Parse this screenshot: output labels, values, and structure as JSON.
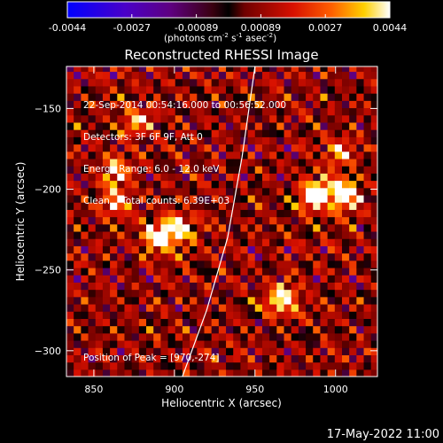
{
  "chart_data": {
    "type": "heatmap",
    "title": "Reconstructed RHESSI Image",
    "xlabel": "Heliocentric X (arcsec)",
    "ylabel": "Heliocentric Y (arcsec)",
    "xlim": [
      833,
      1026
    ],
    "ylim": [
      -316,
      -124
    ],
    "x_ticks": [
      850,
      900,
      950,
      1000
    ],
    "y_ticks": [
      -150,
      -200,
      -250,
      -300
    ],
    "colorbar": {
      "range": [
        -0.0044,
        0.0044
      ],
      "ticks": [
        "-0.0044",
        "-0.0027",
        "-0.00089",
        "0.00089",
        "0.0027",
        "0.0044"
      ],
      "unit_label": "(photons cm^-2 s^-1 asec^-2)",
      "unit_parts": {
        "base": "(photons cm",
        "e1": "-2",
        "s": " s",
        "e2": "-1",
        "asec": " asec",
        "e3": "-2",
        "close": ")"
      }
    },
    "annotations": {
      "time_range": "22-Sep-2014 00:54:16.000 to 00:56:52.000",
      "detectors": "Detectors: 3F 6F 9F, Att 0",
      "energy": "Energy Range: 6.0 - 12.0 keV",
      "clean": "Clean    Total counts: 6.39E+03",
      "peak": "Position of Peak = [970,-274]"
    },
    "peak": [
      970,
      -274
    ],
    "bright_sources": [
      {
        "x": 985,
        "y": -205,
        "level": 1.0
      },
      {
        "x": 1003,
        "y": -205,
        "level": 0.95
      },
      {
        "x": 965,
        "y": -270,
        "level": 0.9
      },
      {
        "x": 900,
        "y": -226,
        "level": 0.85
      },
      {
        "x": 887,
        "y": -232,
        "level": 0.8
      },
      {
        "x": 862,
        "y": -210,
        "level": 0.7
      },
      {
        "x": 862,
        "y": -190,
        "level": 0.65
      },
      {
        "x": 1000,
        "y": -180,
        "level": 0.6
      },
      {
        "x": 875,
        "y": -160,
        "level": 0.55
      }
    ],
    "limb_curve": [
      [
        905,
        -316
      ],
      [
        920,
        -275
      ],
      [
        933,
        -230
      ],
      [
        942,
        -180
      ],
      [
        950,
        -124
      ]
    ],
    "colors": {
      "background": "#000000",
      "text": "#ffffff",
      "limb": "#ffffff"
    }
  },
  "footer": {
    "date": "17-May-2022 11:00"
  }
}
